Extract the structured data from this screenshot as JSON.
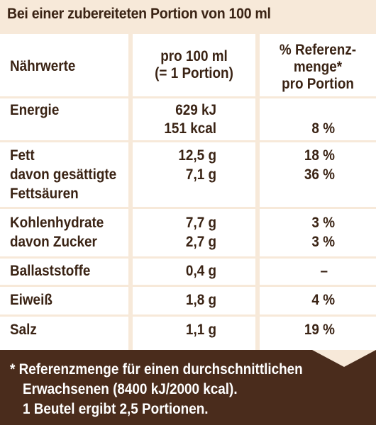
{
  "title": "Bei einer zubereiteten Portion von 100 ml",
  "header": {
    "col1": "Nährwerte",
    "col2_line1": "pro 100 ml",
    "col2_line2": "(= 1 Portion)",
    "col3_line1": "% Referenz-",
    "col3_line2": "menge*",
    "col3_line3": "pro Portion"
  },
  "rows": [
    {
      "name": [
        "Energie"
      ],
      "value": [
        "629 kJ",
        "151 kcal"
      ],
      "ref": [
        "",
        "8 %"
      ]
    },
    {
      "name": [
        "Fett",
        "davon gesättigte",
        "Fettsäuren"
      ],
      "value": [
        "12,5 g",
        "7,1 g"
      ],
      "ref": [
        "18 %",
        "36 %"
      ]
    },
    {
      "name": [
        "Kohlenhydrate",
        "davon Zucker"
      ],
      "value": [
        "7,7 g",
        "2,7 g"
      ],
      "ref": [
        "3 %",
        "3 %"
      ]
    },
    {
      "name": [
        "Ballaststoffe"
      ],
      "value": [
        "0,4 g"
      ],
      "ref": [
        "–"
      ]
    },
    {
      "name": [
        "Eiweiß"
      ],
      "value": [
        "1,8 g"
      ],
      "ref": [
        "4 %"
      ]
    },
    {
      "name": [
        "Salz"
      ],
      "value": [
        "1,1 g"
      ],
      "ref": [
        "19 %"
      ]
    }
  ],
  "footer": {
    "line1": "* Referenzmenge für einen durchschnittlichen",
    "line2": "Erwachsenen (8400 kJ/2000 kcal).",
    "line3": "1 Beutel ergibt 2,5 Portionen."
  }
}
